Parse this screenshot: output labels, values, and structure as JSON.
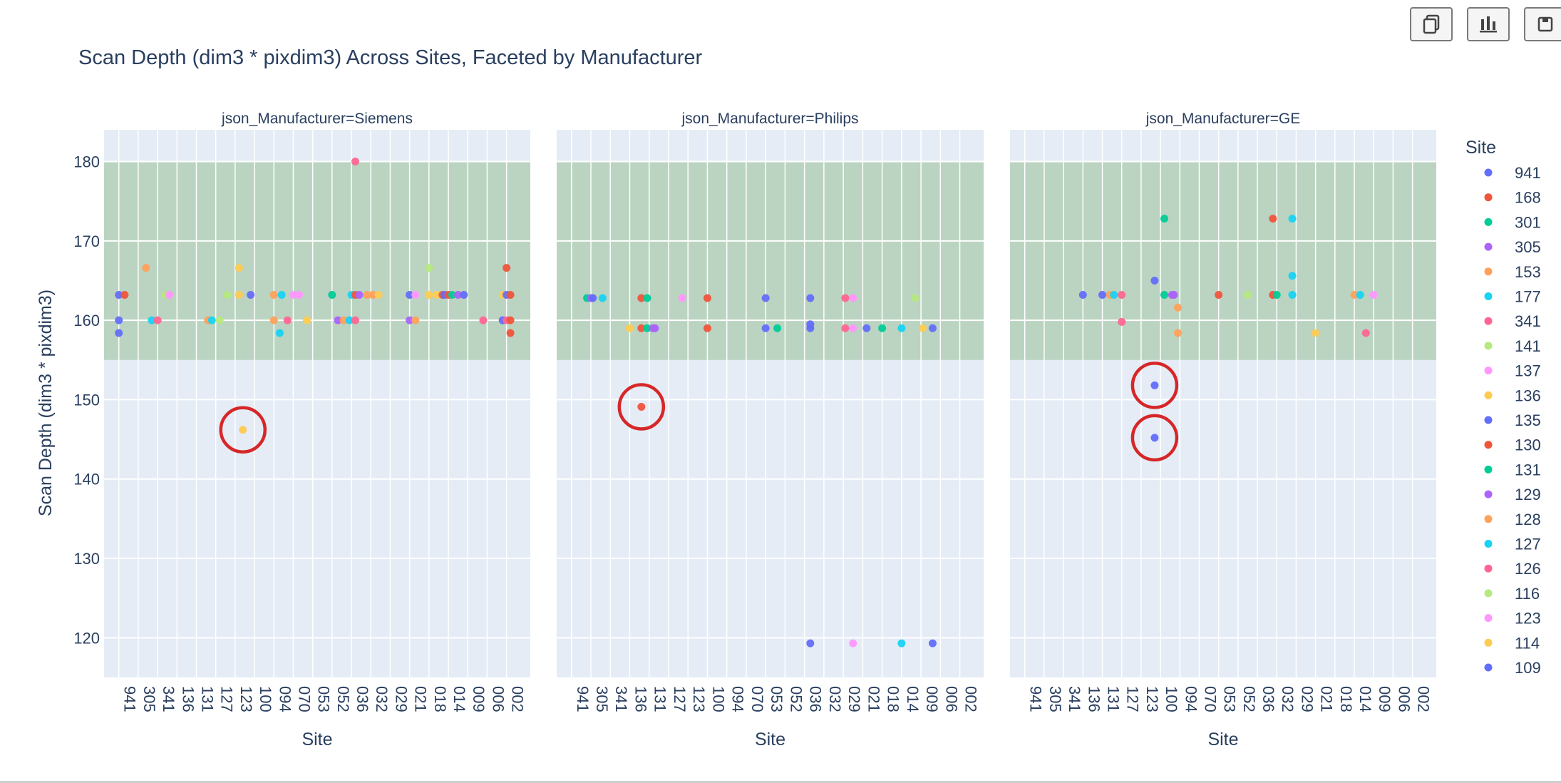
{
  "toolbar": {
    "buttons": [
      {
        "icon": "copy-icon"
      },
      {
        "icon": "bar-chart-icon"
      },
      {
        "icon": "save-icon"
      }
    ]
  },
  "chart_data": {
    "type": "scatter",
    "title": "Scan Depth (dim3 * pixdim3) Across Sites, Faceted by Manufacturer",
    "xlabel": "Site",
    "ylabel": "Scan Depth (dim3 * pixdim3)",
    "ylim": [
      115,
      184
    ],
    "yticks": [
      120,
      130,
      140,
      150,
      160,
      170,
      180
    ],
    "grid": true,
    "band": {
      "y0": 155,
      "y1": 180,
      "color": "#9cc59f"
    },
    "categories": [
      "941",
      "305",
      "341",
      "136",
      "131",
      "127",
      "123",
      "100",
      "094",
      "070",
      "053",
      "052",
      "036",
      "032",
      "029",
      "021",
      "018",
      "014",
      "009",
      "006",
      "002"
    ],
    "legend": {
      "title": "Site",
      "placement": "right",
      "items": [
        {
          "name": "941",
          "color": "#636efa"
        },
        {
          "name": "168",
          "color": "#EF553B"
        },
        {
          "name": "301",
          "color": "#00cc96"
        },
        {
          "name": "305",
          "color": "#ab63fa"
        },
        {
          "name": "153",
          "color": "#FFA15A"
        },
        {
          "name": "177",
          "color": "#19d3f3"
        },
        {
          "name": "341",
          "color": "#FF6692"
        },
        {
          "name": "141",
          "color": "#B6E880"
        },
        {
          "name": "137",
          "color": "#FF97FF"
        },
        {
          "name": "136",
          "color": "#FECB52"
        },
        {
          "name": "135",
          "color": "#636efa"
        },
        {
          "name": "130",
          "color": "#EF553B"
        },
        {
          "name": "131",
          "color": "#00cc96"
        },
        {
          "name": "129",
          "color": "#ab63fa"
        },
        {
          "name": "128",
          "color": "#FFA15A"
        },
        {
          "name": "127",
          "color": "#19d3f3"
        },
        {
          "name": "126",
          "color": "#FF6692"
        },
        {
          "name": "116",
          "color": "#B6E880"
        },
        {
          "name": "123",
          "color": "#FF97FF"
        },
        {
          "name": "114",
          "color": "#FECB52"
        },
        {
          "name": "109",
          "color": "#636efa"
        }
      ]
    },
    "facets": [
      {
        "title": "json_Manufacturer=Siemens",
        "points": [
          [
            0,
            163.2,
            "#636efa"
          ],
          [
            0,
            160.0,
            "#636efa"
          ],
          [
            0,
            158.4,
            "#636efa"
          ],
          [
            0.3,
            163.2,
            "#EF553B"
          ],
          [
            1.4,
            166.6,
            "#FFA15A"
          ],
          [
            1.7,
            160.0,
            "#19d3f3"
          ],
          [
            2.0,
            160.0,
            "#FF6692"
          ],
          [
            2.4,
            163.2,
            "#B6E880"
          ],
          [
            2.6,
            163.2,
            "#FF97FF"
          ],
          [
            4.6,
            160.0,
            "#FFA15A"
          ],
          [
            4.8,
            160.0,
            "#19d3f3"
          ],
          [
            5.2,
            160.0,
            "#B6E880"
          ],
          [
            5.6,
            163.2,
            "#B6E880"
          ],
          [
            6.2,
            166.6,
            "#FECB52"
          ],
          [
            6.2,
            163.2,
            "#FECB52"
          ],
          [
            6.4,
            146.2,
            "#FECB52"
          ],
          [
            6.8,
            163.2,
            "#636efa"
          ],
          [
            8.0,
            163.2,
            "#FFA15A"
          ],
          [
            8.0,
            160.0,
            "#FFA15A"
          ],
          [
            8.3,
            158.4,
            "#19d3f3"
          ],
          [
            8.4,
            163.2,
            "#19d3f3"
          ],
          [
            8.7,
            160.0,
            "#FF6692"
          ],
          [
            9.0,
            163.2,
            "#FF97FF"
          ],
          [
            9.3,
            163.2,
            "#FF97FF"
          ],
          [
            9.7,
            160.0,
            "#FECB52"
          ],
          [
            11.0,
            163.2,
            "#00cc96"
          ],
          [
            11.3,
            160.0,
            "#ab63fa"
          ],
          [
            11.6,
            160.0,
            "#FFA15A"
          ],
          [
            11.9,
            160.0,
            "#19d3f3"
          ],
          [
            12.0,
            163.2,
            "#19d3f3"
          ],
          [
            12.2,
            180.0,
            "#FF6692"
          ],
          [
            12.2,
            163.2,
            "#EF553B"
          ],
          [
            12.2,
            160.0,
            "#FF6692"
          ],
          [
            12.4,
            163.2,
            "#ab63fa"
          ],
          [
            12.8,
            163.2,
            "#FFA15A"
          ],
          [
            13.1,
            163.2,
            "#FFA15A"
          ],
          [
            13.4,
            163.2,
            "#FECB52"
          ],
          [
            15.0,
            163.2,
            "#636efa"
          ],
          [
            15.0,
            160.0,
            "#ab63fa"
          ],
          [
            15.3,
            163.2,
            "#FF97FF"
          ],
          [
            15.3,
            160.0,
            "#FFA15A"
          ],
          [
            16.0,
            166.6,
            "#B6E880"
          ],
          [
            16.0,
            163.2,
            "#FECB52"
          ],
          [
            16.4,
            163.2,
            "#FECB52"
          ],
          [
            16.7,
            163.2,
            "#EF553B"
          ],
          [
            16.8,
            163.2,
            "#636efa"
          ],
          [
            17.0,
            163.2,
            "#EF553B"
          ],
          [
            17.2,
            163.2,
            "#00cc96"
          ],
          [
            17.5,
            163.2,
            "#ab63fa"
          ],
          [
            17.8,
            163.2,
            "#636efa"
          ],
          [
            18.8,
            160.0,
            "#FF6692"
          ],
          [
            19.8,
            160.0,
            "#636efa"
          ],
          [
            19.8,
            163.2,
            "#FECB52"
          ],
          [
            20.0,
            166.6,
            "#EF553B"
          ],
          [
            20.0,
            163.2,
            "#636efa"
          ],
          [
            20.0,
            160.0,
            "#FF6692"
          ],
          [
            20.2,
            163.2,
            "#EF553B"
          ],
          [
            20.2,
            160.0,
            "#EF553B"
          ],
          [
            20.2,
            158.4,
            "#EF553B"
          ]
        ],
        "highlights": [
          [
            6.4,
            146.2
          ]
        ]
      },
      {
        "title": "json_Manufacturer=Philips",
        "points": [
          [
            0.8,
            162.8,
            "#00cc96"
          ],
          [
            1.0,
            162.8,
            "#ab63fa"
          ],
          [
            1.1,
            162.8,
            "#636efa"
          ],
          [
            1.6,
            162.8,
            "#19d3f3"
          ],
          [
            3.0,
            159.0,
            "#FECB52"
          ],
          [
            3.6,
            162.8,
            "#EF553B"
          ],
          [
            3.6,
            159.0,
            "#EF553B"
          ],
          [
            3.6,
            149.1,
            "#EF553B"
          ],
          [
            3.9,
            162.8,
            "#00cc96"
          ],
          [
            3.9,
            159.0,
            "#00cc96"
          ],
          [
            4.2,
            159.0,
            "#ab63fa"
          ],
          [
            4.3,
            159.0,
            "#ab63fa"
          ],
          [
            5.7,
            162.8,
            "#FF97FF"
          ],
          [
            7.0,
            162.8,
            "#EF553B"
          ],
          [
            7.0,
            159.0,
            "#EF553B"
          ],
          [
            10.0,
            162.8,
            "#636efa"
          ],
          [
            10.0,
            159.0,
            "#636efa"
          ],
          [
            10.6,
            159.0,
            "#00cc96"
          ],
          [
            12.3,
            162.8,
            "#636efa"
          ],
          [
            12.3,
            159.5,
            "#636efa"
          ],
          [
            12.3,
            159.0,
            "#636efa"
          ],
          [
            12.3,
            119.3,
            "#636efa"
          ],
          [
            14.1,
            162.8,
            "#FF6692"
          ],
          [
            14.1,
            159.0,
            "#FF6692"
          ],
          [
            14.5,
            162.8,
            "#FF97FF"
          ],
          [
            14.5,
            159.0,
            "#FF97FF"
          ],
          [
            14.5,
            119.3,
            "#FF97FF"
          ],
          [
            15.2,
            159.0,
            "#636efa"
          ],
          [
            16.0,
            159.0,
            "#00cc96"
          ],
          [
            17.0,
            159.0,
            "#19d3f3"
          ],
          [
            17.0,
            119.3,
            "#19d3f3"
          ],
          [
            17.7,
            162.8,
            "#B6E880"
          ],
          [
            18.1,
            159.0,
            "#FECB52"
          ],
          [
            18.6,
            159.0,
            "#636efa"
          ],
          [
            18.6,
            119.3,
            "#636efa"
          ]
        ],
        "highlights": [
          [
            3.6,
            149.1
          ]
        ]
      },
      {
        "title": "json_Manufacturer=GE",
        "points": [
          [
            3.0,
            163.2,
            "#636efa"
          ],
          [
            4.0,
            163.2,
            "#636efa"
          ],
          [
            4.4,
            163.2,
            "#FFA15A"
          ],
          [
            4.6,
            163.2,
            "#19d3f3"
          ],
          [
            5.0,
            163.2,
            "#FF6692"
          ],
          [
            5.0,
            159.8,
            "#FF6692"
          ],
          [
            6.7,
            165.0,
            "#636efa"
          ],
          [
            6.7,
            151.8,
            "#636efa"
          ],
          [
            6.7,
            145.2,
            "#636efa"
          ],
          [
            7.2,
            172.8,
            "#00cc96"
          ],
          [
            7.2,
            163.2,
            "#00cc96"
          ],
          [
            7.6,
            163.2,
            "#ab63fa"
          ],
          [
            7.7,
            163.2,
            "#ab63fa"
          ],
          [
            7.9,
            161.6,
            "#FFA15A"
          ],
          [
            7.9,
            158.4,
            "#FFA15A"
          ],
          [
            10.0,
            163.2,
            "#EF553B"
          ],
          [
            11.5,
            163.2,
            "#B6E880"
          ],
          [
            12.8,
            172.8,
            "#EF553B"
          ],
          [
            12.8,
            163.2,
            "#EF553B"
          ],
          [
            13.0,
            163.2,
            "#00cc96"
          ],
          [
            13.8,
            172.8,
            "#19d3f3"
          ],
          [
            13.8,
            165.6,
            "#19d3f3"
          ],
          [
            13.8,
            163.2,
            "#19d3f3"
          ],
          [
            15.0,
            158.4,
            "#FECB52"
          ],
          [
            17.0,
            163.2,
            "#FFA15A"
          ],
          [
            17.3,
            163.2,
            "#19d3f3"
          ],
          [
            17.6,
            158.4,
            "#FF6692"
          ],
          [
            18.0,
            163.2,
            "#FF97FF"
          ]
        ],
        "highlights": [
          [
            6.7,
            151.8
          ],
          [
            6.7,
            145.2
          ]
        ]
      }
    ]
  }
}
